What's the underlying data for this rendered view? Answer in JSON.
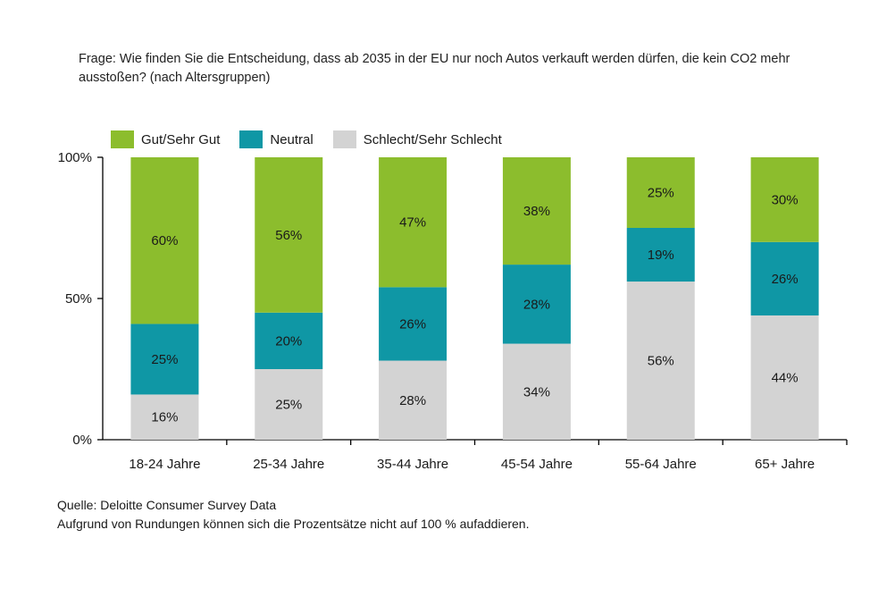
{
  "question": "Frage: Wie finden Sie die Entscheidung, dass ab 2035 in der EU nur noch Autos verkauft werden dürfen, die kein CO2 mehr ausstoßen? (nach Altersgruppen)",
  "footer": {
    "source": "Quelle: Deloitte Consumer Survey Data",
    "note": "Aufgrund von Rundungen können sich die Prozentsätze nicht auf 100 % aufaddieren."
  },
  "chart_data": {
    "type": "bar",
    "stacked": true,
    "title": "",
    "xlabel": "",
    "ylabel": "",
    "ylim": [
      0,
      100
    ],
    "yticks": [
      "0%",
      "50%",
      "100%"
    ],
    "ytick_values": [
      0,
      50,
      100
    ],
    "legend_position": "top-left",
    "grid": false,
    "categories": [
      "18-24 Jahre",
      "25-34 Jahre",
      "35-44 Jahre",
      "45-54 Jahre",
      "55-64 Jahre",
      "65+ Jahre"
    ],
    "series": [
      {
        "name": "Schlecht/Sehr Schlecht",
        "values": [
          16,
          25,
          28,
          34,
          56,
          44
        ],
        "labels": [
          "16%",
          "25%",
          "28%",
          "34%",
          "56%",
          "44%"
        ],
        "color": "#d3d3d3"
      },
      {
        "name": "Neutral",
        "values": [
          25,
          20,
          26,
          28,
          19,
          26
        ],
        "labels": [
          "25%",
          "20%",
          "26%",
          "28%",
          "19%",
          "26%"
        ],
        "color": "#0f97a5"
      },
      {
        "name": "Gut/Sehr Gut",
        "values": [
          60,
          56,
          47,
          38,
          25,
          30
        ],
        "labels": [
          "60%",
          "56%",
          "47%",
          "38%",
          "25%",
          "30%"
        ],
        "color": "#8cbd2d"
      }
    ],
    "legend_order": [
      "Gut/Sehr Gut",
      "Neutral",
      "Schlecht/Sehr Schlecht"
    ]
  }
}
